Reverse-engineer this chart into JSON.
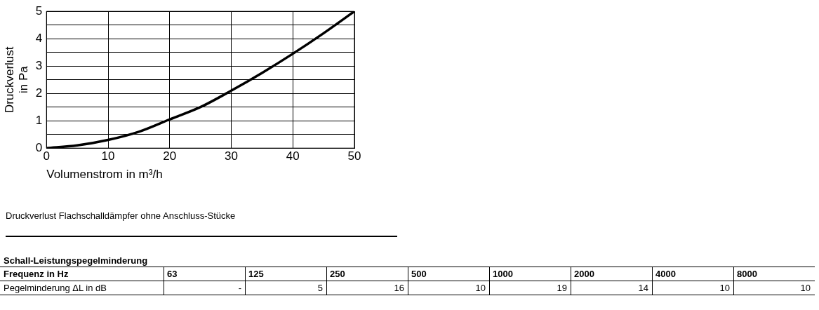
{
  "chart_data": [
    {
      "type": "line",
      "xlabel": "Volumenstrom in m³/h",
      "ylabel": "Druckverlust\nin Pa",
      "annotations": [
        "Druckverlust Flachschalldämpfer ohne Anschluss-Stücke"
      ],
      "series": [
        {
          "color": "#000000",
          "x": [
            0,
            5,
            10,
            15,
            20,
            25,
            30,
            35,
            40,
            45,
            50
          ],
          "values": [
            0,
            0.1,
            0.3,
            0.6,
            1.05,
            1.5,
            2.1,
            2.75,
            3.45,
            4.2,
            5
          ]
        }
      ],
      "xlim": [
        0,
        50
      ],
      "xticks": [
        0,
        10,
        20,
        30,
        40,
        50
      ],
      "ylim": [
        0,
        5
      ],
      "yticks": [
        0,
        {
          "value": 0.5,
          "label": null
        },
        1,
        {
          "value": 1.5,
          "label": null
        },
        2,
        {
          "value": 2.5,
          "label": null
        },
        3,
        {
          "value": 3.5,
          "label": null
        },
        4,
        {
          "value": 4.5,
          "label": null
        },
        5
      ],
      "grid": true,
      "marker": "none",
      "line_style": "solid"
    },
    {
      "type": "other",
      "title": "Schall-Leistungspegelminderung",
      "annotations": [
        "Frequenz in Hz",
        "63",
        "125",
        "250",
        "500",
        "1000",
        "2000",
        "4000",
        "8000",
        "Pegelminderung ΔL in dB",
        "-",
        "5",
        "16",
        "10",
        "19",
        "14",
        "10",
        "10"
      ]
    }
  ]
}
